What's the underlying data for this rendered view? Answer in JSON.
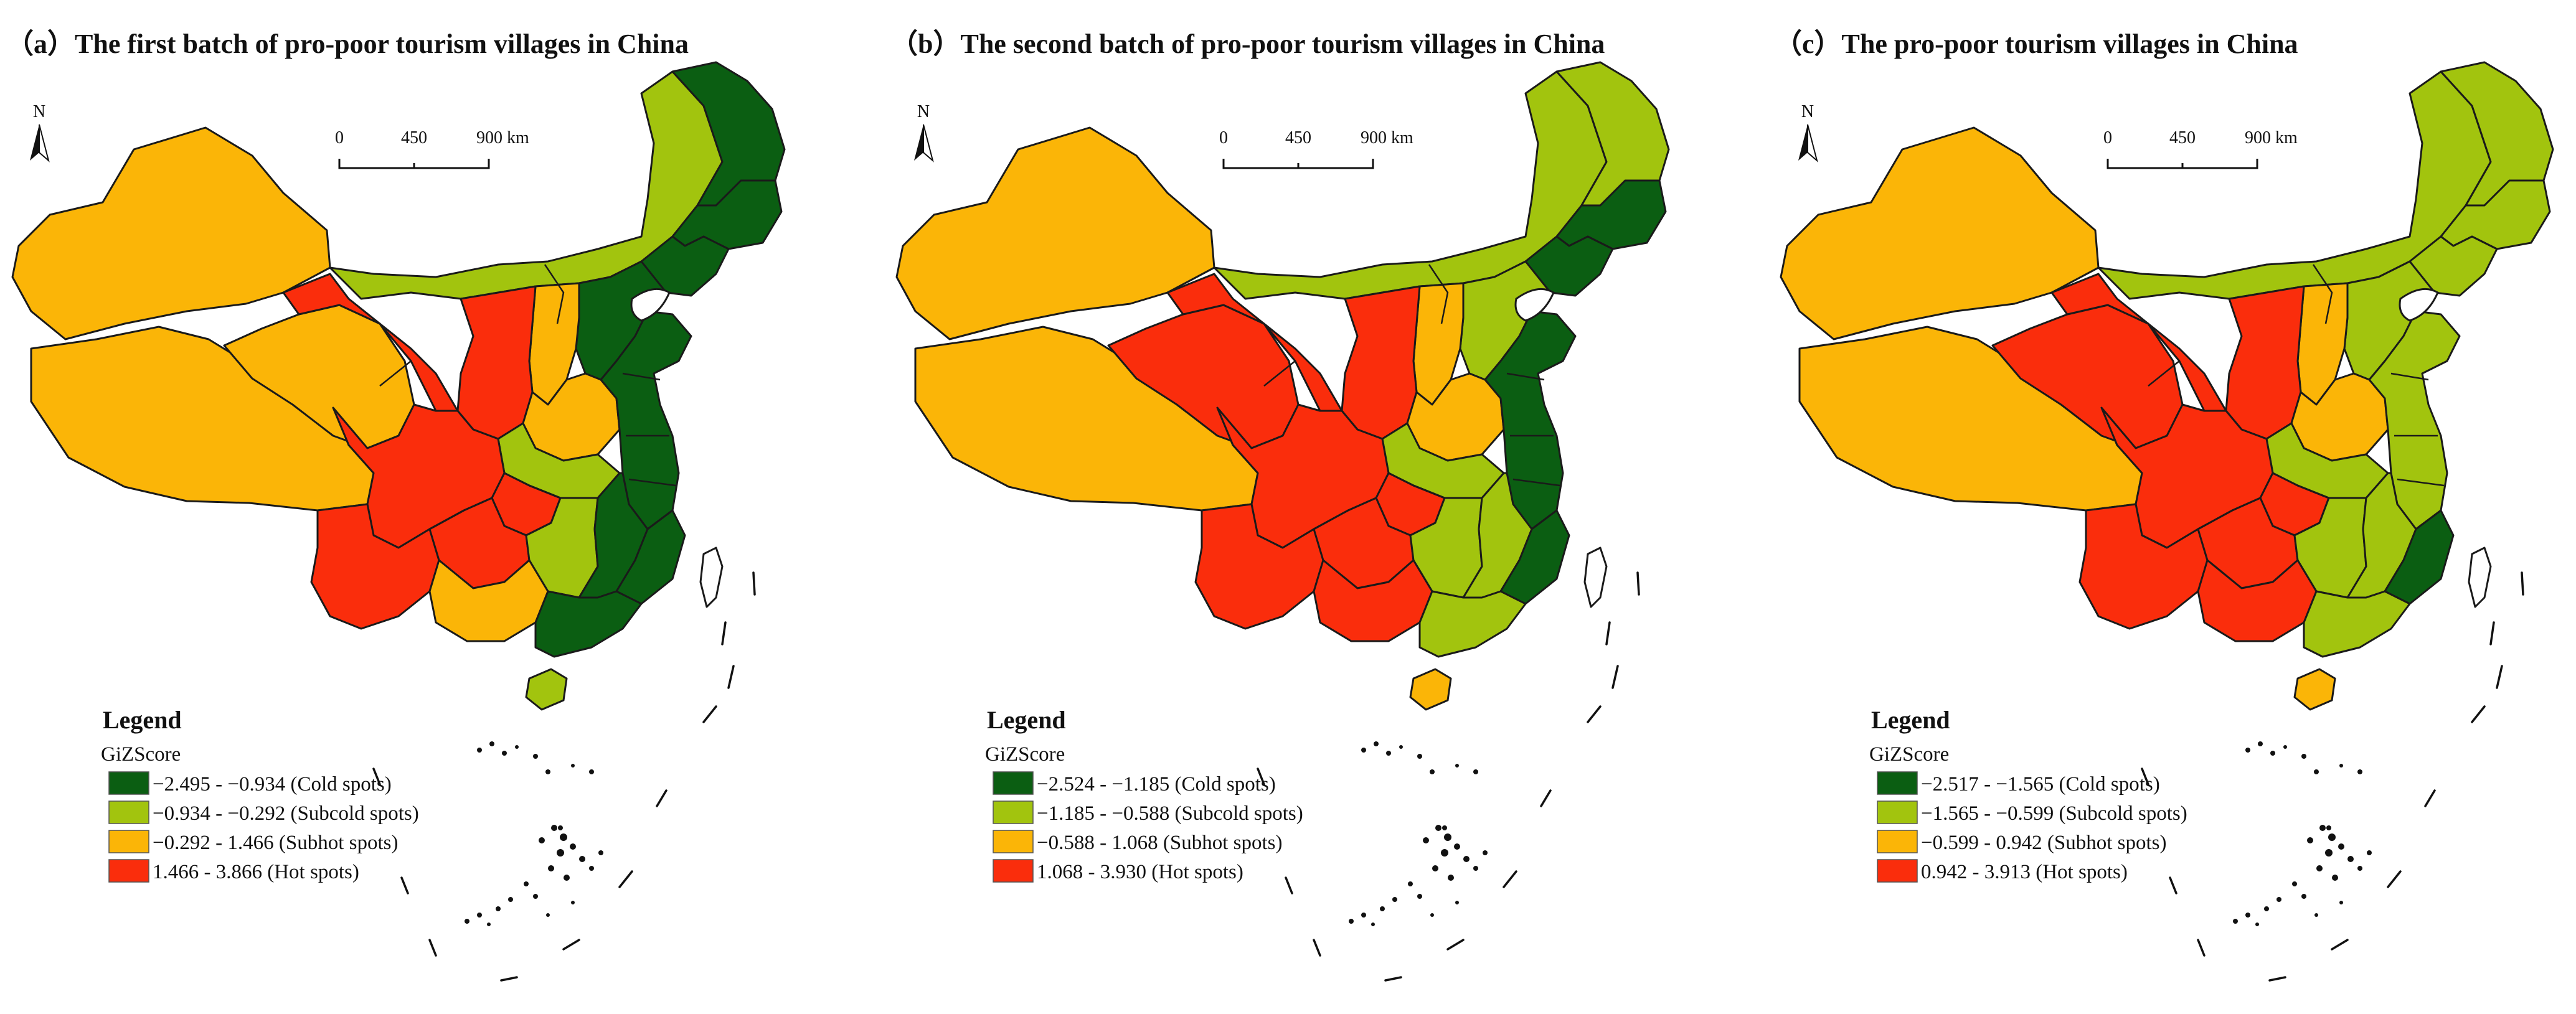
{
  "colors": {
    "cold": "#0b5e12",
    "subcold": "#a2c40e",
    "subhot": "#fbb507",
    "hot": "#fa2d0c"
  },
  "scale_ticks": [
    "0",
    "450",
    "900 km"
  ],
  "north_label": "N",
  "legend_title": "Legend",
  "legend_subtitle": "GiZScore",
  "panels": [
    {
      "title": "（a）The first  batch of pro-poor tourism villages in China",
      "legend": [
        {
          "label": "−2.495 - −0.934 (Cold spots)",
          "class": "cold"
        },
        {
          "label": "−0.934 - −0.292 (Subcold spots)",
          "class": "subcold"
        },
        {
          "label": "−0.292 - 1.466 (Subhot spots)",
          "class": "subhot"
        },
        {
          "label": "1.466 - 3.866 (Hot spots)",
          "class": "hot"
        }
      ],
      "regions": {
        "xinjiang": "subhot",
        "tibet": "subhot",
        "qinghai": "subhot",
        "gansu": "hot",
        "inner_mongolia": "subcold",
        "heilongjiang": "cold",
        "jilin": "cold",
        "liaoning": "cold",
        "north_china": "cold",
        "shanxi": "subhot",
        "shaanxi": "hot",
        "henan": "subhot",
        "east_coast": "cold",
        "hubei": "subcold",
        "sichuan": "hot",
        "chongqing": "hot",
        "yunnan": "hot",
        "guizhou": "hot",
        "hunan": "subcold",
        "jiangxi": "cold",
        "fujian": "cold",
        "guangxi": "subhot",
        "guangdong": "cold",
        "hainan": "subcold"
      }
    },
    {
      "title": "（b）The second  batch of pro-poor tourism villages in China",
      "legend": [
        {
          "label": "−2.524 - −1.185 (Cold spots)",
          "class": "cold"
        },
        {
          "label": "−1.185 - −0.588 (Subcold spots)",
          "class": "subcold"
        },
        {
          "label": "−0.588 - 1.068 (Subhot spots)",
          "class": "subhot"
        },
        {
          "label": "1.068 - 3.930 (Hot spots)",
          "class": "hot"
        }
      ],
      "regions": {
        "xinjiang": "subhot",
        "tibet": "subhot",
        "qinghai": "hot",
        "gansu": "hot",
        "inner_mongolia": "subcold",
        "heilongjiang": "subcold",
        "jilin": "cold",
        "liaoning": "cold",
        "north_china": "subcold",
        "shanxi": "subhot",
        "shaanxi": "hot",
        "henan": "subhot",
        "east_coast": "cold",
        "hubei": "subcold",
        "sichuan": "hot",
        "chongqing": "hot",
        "yunnan": "hot",
        "guizhou": "hot",
        "hunan": "subcold",
        "jiangxi": "subcold",
        "fujian": "cold",
        "guangxi": "hot",
        "guangdong": "subcold",
        "hainan": "subhot"
      }
    },
    {
      "title": "（c）The  pro-poor tourism villages in China",
      "legend": [
        {
          "label": "−2.517 - −1.565 (Cold spots)",
          "class": "cold"
        },
        {
          "label": "−1.565 - −0.599 (Subcold spots)",
          "class": "subcold"
        },
        {
          "label": "−0.599 - 0.942 (Subhot spots)",
          "class": "subhot"
        },
        {
          "label": "0.942 - 3.913 (Hot spots)",
          "class": "hot"
        }
      ],
      "regions": {
        "xinjiang": "subhot",
        "tibet": "subhot",
        "qinghai": "hot",
        "gansu": "hot",
        "inner_mongolia": "subcold",
        "heilongjiang": "subcold",
        "jilin": "subcold",
        "liaoning": "subcold",
        "north_china": "subcold",
        "shanxi": "subhot",
        "shaanxi": "hot",
        "henan": "subhot",
        "east_coast": "subcold",
        "hubei": "subcold",
        "sichuan": "hot",
        "chongqing": "hot",
        "yunnan": "hot",
        "guizhou": "hot",
        "hunan": "subcold",
        "jiangxi": "subcold",
        "fujian": "cold",
        "guangxi": "hot",
        "guangdong": "subcold",
        "hainan": "subhot"
      }
    }
  ]
}
